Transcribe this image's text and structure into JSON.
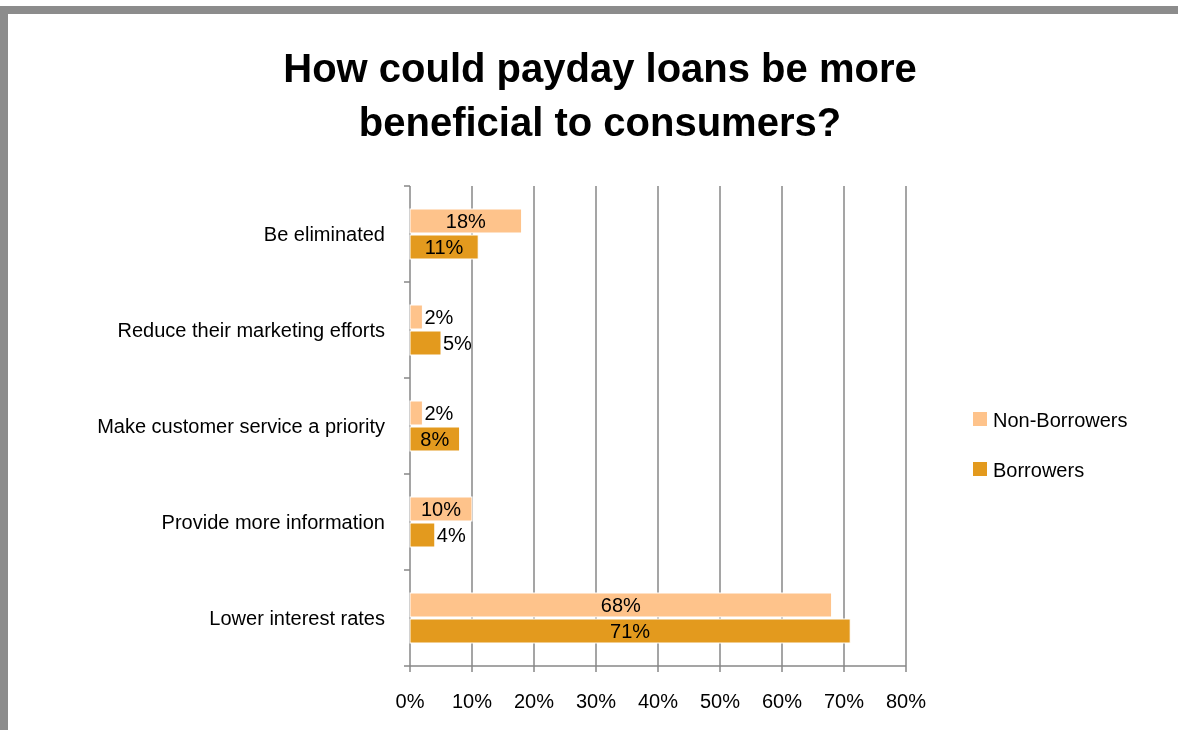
{
  "chart_data": {
    "type": "bar",
    "orientation": "horizontal",
    "title": "How could payday loans be more beneficial to consumers?",
    "categories": [
      "Be eliminated",
      "Reduce their marketing efforts",
      "Make customer service a priority",
      "Provide more information",
      "Lower interest rates"
    ],
    "series": [
      {
        "name": "Non-Borrowers",
        "color": "#fec38b",
        "values": [
          18,
          2,
          2,
          10,
          68
        ]
      },
      {
        "name": "Borrowers",
        "color": "#e39a1e",
        "values": [
          11,
          5,
          8,
          4,
          71
        ]
      }
    ],
    "xlim": [
      0,
      80
    ],
    "xticks": [
      {
        "value": 0,
        "label": "0%"
      },
      {
        "value": 10,
        "label": "10%"
      },
      {
        "value": 20,
        "label": "20%"
      },
      {
        "value": 30,
        "label": "30%"
      },
      {
        "value": 40,
        "label": "40%"
      },
      {
        "value": 50,
        "label": "50%"
      },
      {
        "value": 60,
        "label": "60%"
      },
      {
        "value": 70,
        "label": "70%"
      },
      {
        "value": 80,
        "label": "80%"
      }
    ],
    "value_labels": [
      [
        "18%",
        "2%",
        "2%",
        "10%",
        "68%"
      ],
      [
        "11%",
        "5%",
        "8%",
        "4%",
        "71%"
      ]
    ],
    "grid": "x",
    "legend": "right"
  }
}
